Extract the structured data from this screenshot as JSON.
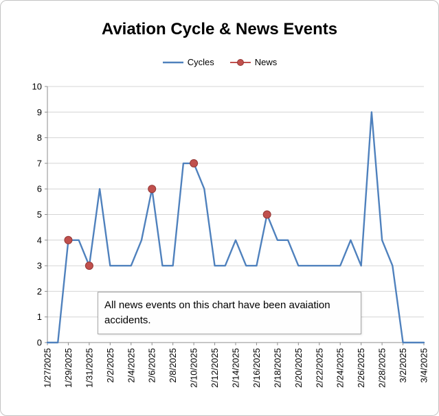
{
  "chart_data": {
    "type": "line",
    "title": "Aviation Cycle & News Events",
    "annotation": "All news events on this chart have been avaiation accidents.",
    "ylim": [
      0,
      10
    ],
    "y_tick_step": 1,
    "x_label_every": 2,
    "grid": true,
    "legend_position": "top",
    "x": [
      "1/27/2025",
      "1/28/2025",
      "1/29/2025",
      "1/30/2025",
      "1/31/2025",
      "2/1/2025",
      "2/2/2025",
      "2/3/2025",
      "2/4/2025",
      "2/5/2025",
      "2/6/2025",
      "2/7/2025",
      "2/8/2025",
      "2/9/2025",
      "2/10/2025",
      "2/11/2025",
      "2/12/2025",
      "2/13/2025",
      "2/14/2025",
      "2/15/2025",
      "2/16/2025",
      "2/17/2025",
      "2/18/2025",
      "2/19/2025",
      "2/20/2025",
      "2/21/2025",
      "2/22/2025",
      "2/23/2025",
      "2/24/2025",
      "2/25/2025",
      "2/26/2025",
      "2/27/2025",
      "2/28/2025",
      "3/1/2025",
      "3/2/2025",
      "3/3/2025",
      "3/4/2025"
    ],
    "x_tick_labels": [
      "1/27/2025",
      "1/29/2025",
      "1/31/2025",
      "2/2/2025",
      "2/4/2025",
      "2/6/2025",
      "2/8/2025",
      "2/10/2025",
      "2/12/2025",
      "2/14/2025",
      "2/16/2025",
      "2/18/2025",
      "2/20/2025",
      "2/22/2025",
      "2/24/2025",
      "2/26/2025",
      "2/28/2025",
      "3/2/2025",
      "3/4/2025"
    ],
    "series": [
      {
        "name": "Cycles",
        "type": "line",
        "color": "#4F81BD",
        "values": [
          0,
          0,
          4,
          4,
          3,
          6,
          3,
          3,
          3,
          4,
          6,
          3,
          3,
          7,
          7,
          6,
          3,
          3,
          4,
          3,
          3,
          5,
          4,
          4,
          3,
          3,
          3,
          3,
          3,
          4,
          3,
          9,
          4,
          3,
          0,
          0,
          0
        ]
      },
      {
        "name": "News",
        "type": "scatter",
        "color": "#C0504D",
        "marker_border": "#943634",
        "points": [
          {
            "x": "1/29/2025",
            "y": 4
          },
          {
            "x": "1/31/2025",
            "y": 3
          },
          {
            "x": "2/6/2025",
            "y": 6
          },
          {
            "x": "2/10/2025",
            "y": 7
          },
          {
            "x": "2/17/2025",
            "y": 5
          }
        ]
      }
    ],
    "colors": {
      "grid": "#D4D4D4",
      "axis": "#8C8C8C",
      "tick_label": "#000000",
      "frame_border": "#C3C3C3"
    }
  }
}
